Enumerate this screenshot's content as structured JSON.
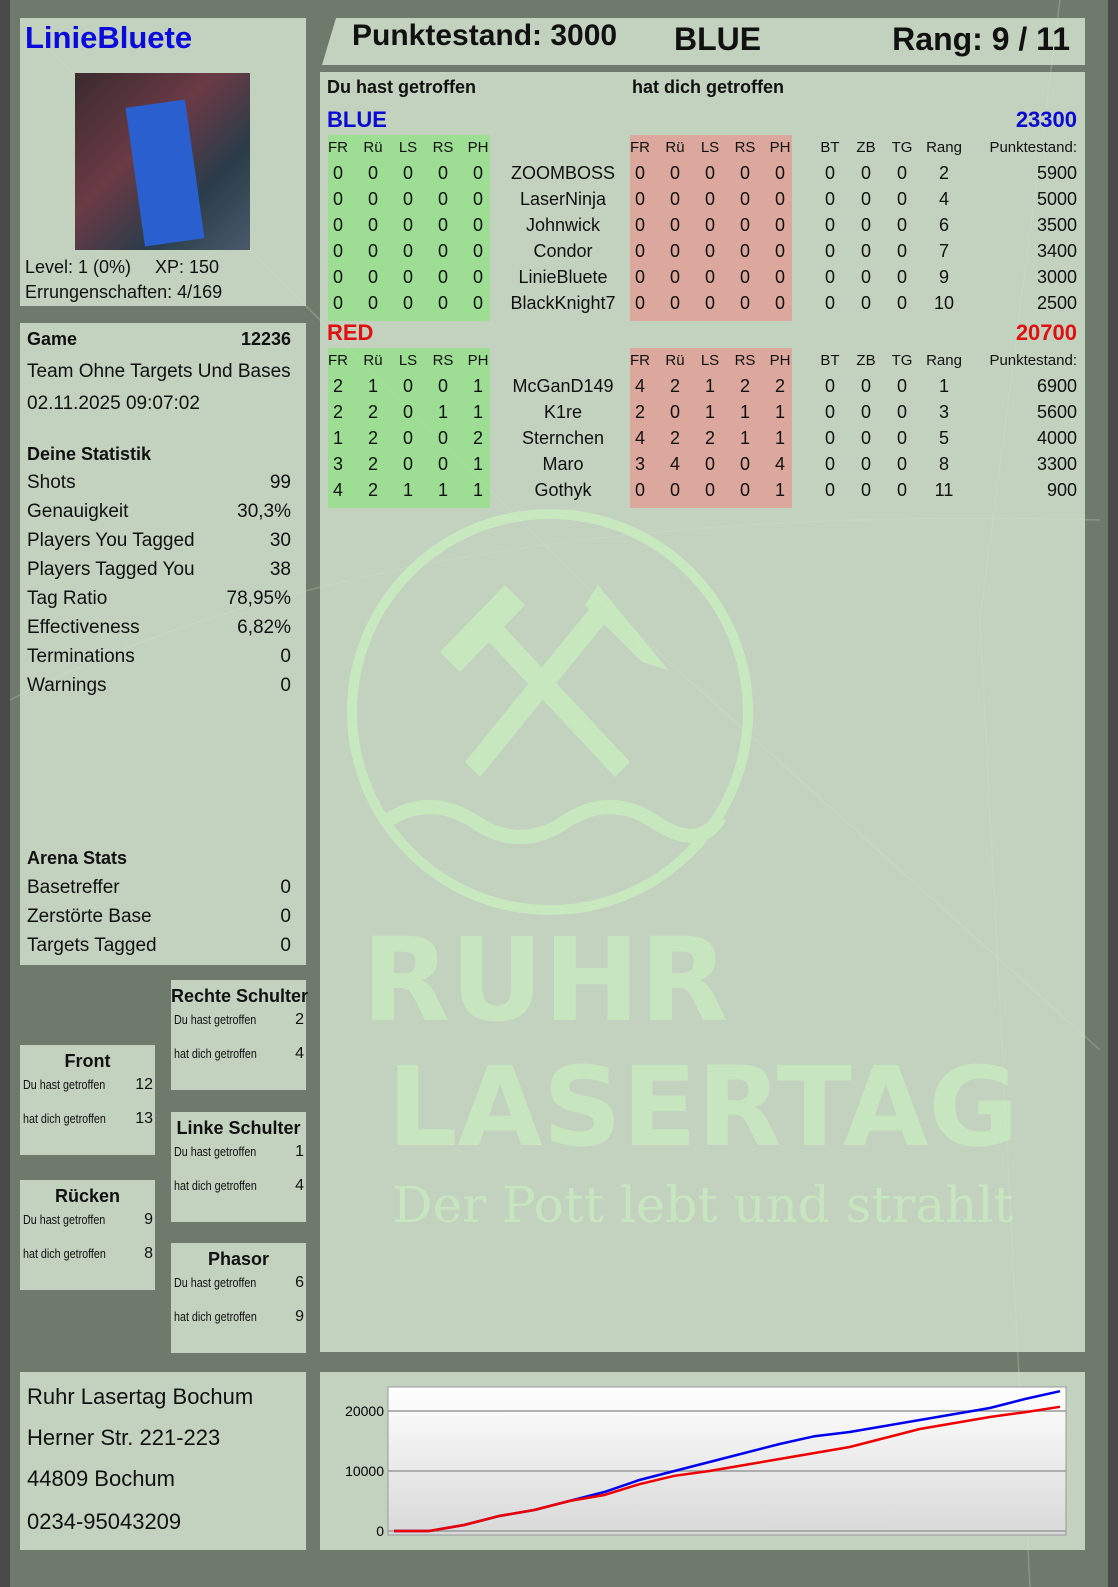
{
  "player": {
    "name": "LinieBluete",
    "level": "Level: 1 (0%)",
    "xp": "XP: 150",
    "achievements": "Errungenschaften: 4/169",
    "avatar": "avatar-image"
  },
  "header": {
    "score": "Punktestand: 3000",
    "team": "BLUE",
    "rank": "Rang: 9 / 11"
  },
  "game": {
    "label": "Game",
    "id": "12236",
    "mode": "Team Ohne Targets Und Bases",
    "datetime": "02.11.2025 09:07:02"
  },
  "stats": {
    "title": "Deine Statistik",
    "items": [
      {
        "label": "Shots",
        "value": "99"
      },
      {
        "label": "Genauigkeit",
        "value": "30,3%"
      },
      {
        "label": "Players You Tagged",
        "value": "30"
      },
      {
        "label": "Players Tagged You",
        "value": "38"
      },
      {
        "label": "Tag Ratio",
        "value": "78,95%"
      },
      {
        "label": "Effectiveness",
        "value": "6,82%"
      },
      {
        "label": "Terminations",
        "value": "0"
      },
      {
        "label": "Warnings",
        "value": "0"
      }
    ]
  },
  "arena": {
    "title": "Arena Stats",
    "items": [
      {
        "label": "Basetreffer",
        "value": "0"
      },
      {
        "label": "Zerstörte Base",
        "value": "0"
      },
      {
        "label": "Targets Tagged",
        "value": "0"
      }
    ]
  },
  "zones": [
    {
      "title": "Rechte Schulter",
      "hit_label": "Du hast getroffen",
      "hit": "2",
      "got_label": "hat dich getroffen",
      "got": "4"
    },
    {
      "title": "Front",
      "hit_label": "Du hast getroffen",
      "hit": "12",
      "got_label": "hat dich getroffen",
      "got": "13"
    },
    {
      "title": "Linke Schulter",
      "hit_label": "Du hast getroffen",
      "hit": "1",
      "got_label": "hat dich getroffen",
      "got": "4"
    },
    {
      "title": "Rücken",
      "hit_label": "Du hast getroffen",
      "hit": "9",
      "got_label": "hat dich getroffen",
      "got": "8"
    },
    {
      "title": "Phasor",
      "hit_label": "Du hast getroffen",
      "hit": "6",
      "got_label": "hat dich getroffen",
      "got": "9"
    }
  ],
  "address": [
    "Ruhr Lasertag Bochum",
    "Herner Str. 221-223",
    "44809 Bochum",
    "0234-95043209"
  ],
  "scoreboard": {
    "you_hit_label": "Du hast getroffen",
    "hit_you_label": "hat dich getroffen",
    "hit_cols": [
      "FR",
      "Rü",
      "LS",
      "RS",
      "PH"
    ],
    "extra_cols": [
      "BT",
      "ZB",
      "TG",
      "Rang",
      "Punktestand:"
    ],
    "teams": [
      {
        "name": "BLUE",
        "total": "23300",
        "color": "#0a0ad0",
        "players": [
          {
            "name": "ZOOMBOSS",
            "hit": [
              "0",
              "0",
              "0",
              "0",
              "0"
            ],
            "got": [
              "0",
              "0",
              "0",
              "0",
              "0"
            ],
            "bt": "0",
            "zb": "0",
            "tg": "0",
            "rank": "2",
            "score": "5900"
          },
          {
            "name": "LaserNinja",
            "hit": [
              "0",
              "0",
              "0",
              "0",
              "0"
            ],
            "got": [
              "0",
              "0",
              "0",
              "0",
              "0"
            ],
            "bt": "0",
            "zb": "0",
            "tg": "0",
            "rank": "4",
            "score": "5000"
          },
          {
            "name": "Johnwick",
            "hit": [
              "0",
              "0",
              "0",
              "0",
              "0"
            ],
            "got": [
              "0",
              "0",
              "0",
              "0",
              "0"
            ],
            "bt": "0",
            "zb": "0",
            "tg": "0",
            "rank": "6",
            "score": "3500"
          },
          {
            "name": "Condor",
            "hit": [
              "0",
              "0",
              "0",
              "0",
              "0"
            ],
            "got": [
              "0",
              "0",
              "0",
              "0",
              "0"
            ],
            "bt": "0",
            "zb": "0",
            "tg": "0",
            "rank": "7",
            "score": "3400"
          },
          {
            "name": "LinieBluete",
            "hit": [
              "0",
              "0",
              "0",
              "0",
              "0"
            ],
            "got": [
              "0",
              "0",
              "0",
              "0",
              "0"
            ],
            "bt": "0",
            "zb": "0",
            "tg": "0",
            "rank": "9",
            "score": "3000"
          },
          {
            "name": "BlackKnight7",
            "hit": [
              "0",
              "0",
              "0",
              "0",
              "0"
            ],
            "got": [
              "0",
              "0",
              "0",
              "0",
              "0"
            ],
            "bt": "0",
            "zb": "0",
            "tg": "0",
            "rank": "10",
            "score": "2500"
          }
        ]
      },
      {
        "name": "RED",
        "total": "20700",
        "color": "#e01010",
        "players": [
          {
            "name": "McGanD149",
            "hit": [
              "2",
              "1",
              "0",
              "0",
              "1"
            ],
            "got": [
              "4",
              "2",
              "1",
              "2",
              "2"
            ],
            "bt": "0",
            "zb": "0",
            "tg": "0",
            "rank": "1",
            "score": "6900"
          },
          {
            "name": "K1re",
            "hit": [
              "2",
              "2",
              "0",
              "1",
              "1"
            ],
            "got": [
              "2",
              "0",
              "1",
              "1",
              "1"
            ],
            "bt": "0",
            "zb": "0",
            "tg": "0",
            "rank": "3",
            "score": "5600"
          },
          {
            "name": "Sternchen",
            "hit": [
              "1",
              "2",
              "0",
              "0",
              "2"
            ],
            "got": [
              "4",
              "2",
              "2",
              "1",
              "1"
            ],
            "bt": "0",
            "zb": "0",
            "tg": "0",
            "rank": "5",
            "score": "4000"
          },
          {
            "name": "Maro",
            "hit": [
              "3",
              "2",
              "0",
              "0",
              "1"
            ],
            "got": [
              "3",
              "4",
              "0",
              "0",
              "4"
            ],
            "bt": "0",
            "zb": "0",
            "tg": "0",
            "rank": "8",
            "score": "3300"
          },
          {
            "name": "Gothyk",
            "hit": [
              "4",
              "2",
              "1",
              "1",
              "1"
            ],
            "got": [
              "0",
              "0",
              "0",
              "0",
              "1"
            ],
            "bt": "0",
            "zb": "0",
            "tg": "0",
            "rank": "11",
            "score": "900"
          }
        ]
      }
    ]
  },
  "watermark": {
    "line1": "RUHR",
    "line2": "LASERTAG",
    "slogan": "Der Pott lebt und strahlt"
  },
  "chart_data": {
    "type": "line",
    "title": "",
    "xlabel": "",
    "ylabel": "",
    "ylim": [
      0,
      24000
    ],
    "yticks": [
      "0",
      "10000",
      "20000"
    ],
    "grid": true,
    "series": [
      {
        "color": "#0000ee",
        "values": [
          0,
          0,
          1000,
          2500,
          3500,
          5000,
          6500,
          8500,
          10000,
          11500,
          13000,
          14500,
          15800,
          16500,
          17500,
          18500,
          19500,
          20500,
          22000,
          23300
        ]
      },
      {
        "color": "#ee0000",
        "values": [
          0,
          0,
          1000,
          2500,
          3500,
          5000,
          6000,
          7800,
          9200,
          10000,
          11000,
          12000,
          13000,
          14000,
          15500,
          17000,
          18000,
          19000,
          19800,
          20700
        ]
      }
    ]
  }
}
